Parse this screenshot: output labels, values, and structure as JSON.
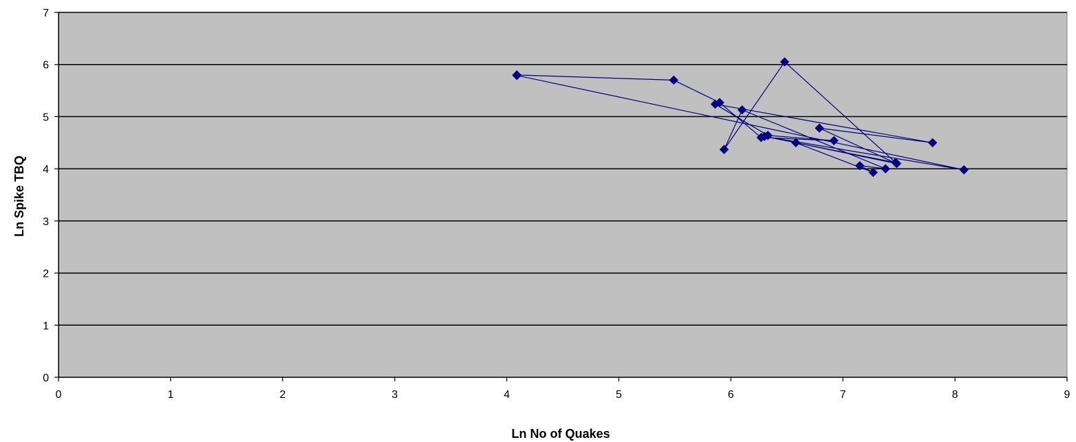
{
  "chart_data": {
    "type": "scatter",
    "xlabel": "Ln No of Quakes",
    "ylabel": "Ln Spike TBQ",
    "xlim": [
      0,
      9
    ],
    "ylim": [
      0,
      7
    ],
    "xticks": [
      0,
      1,
      2,
      3,
      4,
      5,
      6,
      7,
      8,
      9
    ],
    "yticks": [
      0,
      1,
      2,
      3,
      4,
      5,
      6,
      7
    ],
    "grid": "horizontal",
    "legend": "none",
    "colors": {
      "plot_background": "#c0c0c0",
      "series": "#000080",
      "gridline": "#000000"
    },
    "series": [
      {
        "marker": "diamond",
        "connected": true,
        "points": [
          [
            4.09,
            5.8
          ],
          [
            5.49,
            5.7
          ],
          [
            5.9,
            5.27
          ],
          [
            6.27,
            4.6
          ],
          [
            6.92,
            4.54
          ],
          [
            6.33,
            4.64
          ],
          [
            5.86,
            5.24
          ],
          [
            7.8,
            4.5
          ],
          [
            6.79,
            4.78
          ],
          [
            7.48,
            4.1
          ],
          [
            6.58,
            4.5
          ],
          [
            7.27,
            3.93
          ],
          [
            7.15,
            4.06
          ],
          [
            7.38,
            4.0
          ],
          [
            6.1,
            5.13
          ],
          [
            5.94,
            4.37
          ],
          [
            6.48,
            6.05
          ],
          [
            7.47,
            4.12
          ],
          [
            6.3,
            4.62
          ],
          [
            8.08,
            3.98
          ],
          [
            4.09,
            5.79
          ]
        ]
      }
    ]
  }
}
